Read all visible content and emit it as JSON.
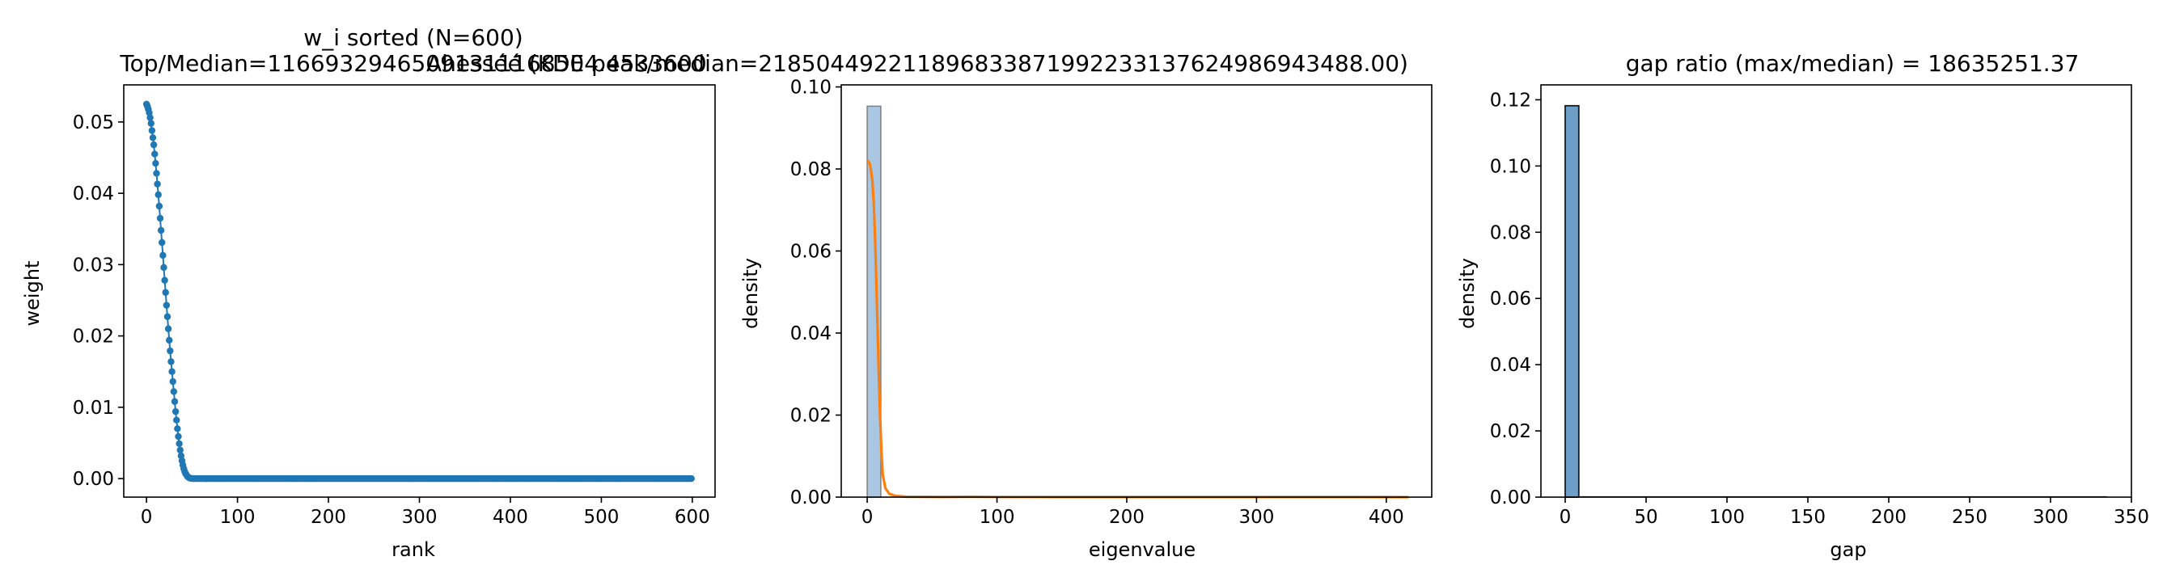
{
  "colors": {
    "blue": "#1f77b4",
    "orange": "#ff7f0e",
    "hist_blue_light": "#a9c6e2",
    "hist_blue": "#6d9ec7"
  },
  "chart_data": [
    {
      "type": "line",
      "title_line1": "w_i sorted (N=600)",
      "title_line2": "Top/Median=11669329465091311168504.4533600",
      "xlabel": "rank",
      "ylabel": "weight",
      "xlim": [
        -25,
        625
      ],
      "ylim": [
        -0.0026,
        0.0552
      ],
      "xticks": [
        0,
        100,
        200,
        300,
        400,
        500,
        600
      ],
      "yticks": [
        0.0,
        0.01,
        0.02,
        0.03,
        0.04,
        0.05
      ],
      "ytick_labels": [
        "0.00",
        "0.01",
        "0.02",
        "0.03",
        "0.04",
        "0.05"
      ],
      "series": [
        {
          "description": "sorted weights, markers at every rank 0..599",
          "points": [
            [
              0,
              0.0525
            ],
            [
              1,
              0.0522
            ],
            [
              2,
              0.0518
            ],
            [
              3,
              0.0513
            ],
            [
              4,
              0.0506
            ],
            [
              5,
              0.0498
            ],
            [
              6,
              0.0488
            ],
            [
              7,
              0.0478
            ],
            [
              8,
              0.0468
            ],
            [
              9,
              0.0455
            ],
            [
              10,
              0.0442
            ],
            [
              11,
              0.0428
            ],
            [
              12,
              0.0413
            ],
            [
              13,
              0.0398
            ],
            [
              14,
              0.0382
            ],
            [
              15,
              0.0365
            ],
            [
              16,
              0.0348
            ],
            [
              17,
              0.0331
            ],
            [
              18,
              0.0313
            ],
            [
              19,
              0.0296
            ],
            [
              20,
              0.0278
            ],
            [
              21,
              0.0261
            ],
            [
              22,
              0.0243
            ],
            [
              23,
              0.0227
            ],
            [
              24,
              0.021
            ],
            [
              25,
              0.0194
            ],
            [
              26,
              0.0179
            ],
            [
              27,
              0.0164
            ],
            [
              28,
              0.015
            ],
            [
              29,
              0.0136
            ],
            [
              30,
              0.0122
            ],
            [
              31,
              0.0108
            ],
            [
              32,
              0.0094
            ],
            [
              33,
              0.0082
            ],
            [
              34,
              0.007
            ],
            [
              35,
              0.0059
            ],
            [
              36,
              0.0049
            ],
            [
              37,
              0.004
            ],
            [
              38,
              0.0032
            ],
            [
              39,
              0.0025
            ],
            [
              40,
              0.0019
            ],
            [
              41,
              0.0014
            ],
            [
              42,
              0.001
            ],
            [
              43,
              0.0007
            ],
            [
              44,
              0.0005
            ],
            [
              45,
              0.0003
            ],
            [
              46,
              0.0002
            ],
            [
              47,
              0.0001
            ],
            [
              48,
              6e-05
            ],
            [
              49,
              3e-05
            ],
            [
              50,
              1e-05
            ]
          ],
          "tail_start": 51,
          "tail_end": 599,
          "tail_value": 0.0
        }
      ]
    },
    {
      "type": "histogram",
      "title": "Ahesséé (KDE peak/median=218504492211896833871992233137624986943488.00)",
      "xlabel": "eigenvalue",
      "ylabel": "density",
      "xlim": [
        -20,
        435
      ],
      "ylim": [
        0,
        0.1005
      ],
      "xticks": [
        0,
        100,
        200,
        300,
        400
      ],
      "yticks": [
        0.0,
        0.02,
        0.04,
        0.06,
        0.08,
        0.1
      ],
      "ytick_labels": [
        "0.00",
        "0.02",
        "0.04",
        "0.06",
        "0.08",
        "0.10"
      ],
      "bins": [
        {
          "x0": 0,
          "x1": 10.5,
          "density": 0.0953
        }
      ],
      "kde": {
        "description": "KDE curve",
        "points": [
          [
            0,
            0.082
          ],
          [
            1,
            0.0818
          ],
          [
            2,
            0.0812
          ],
          [
            3,
            0.0795
          ],
          [
            4,
            0.077
          ],
          [
            5,
            0.072
          ],
          [
            6,
            0.064
          ],
          [
            7,
            0.053
          ],
          [
            8,
            0.041
          ],
          [
            9,
            0.029
          ],
          [
            10,
            0.019
          ],
          [
            11,
            0.011
          ],
          [
            12,
            0.0055
          ],
          [
            14,
            0.0022
          ],
          [
            17,
            0.0008
          ],
          [
            22,
            0.0003
          ],
          [
            30,
            0.0001
          ],
          [
            60,
            5e-05
          ],
          [
            80,
            0.0001
          ],
          [
            100,
            4e-05
          ],
          [
            150,
            3e-05
          ],
          [
            200,
            3e-05
          ],
          [
            300,
            2e-05
          ],
          [
            380,
            2e-05
          ],
          [
            417,
            0.0
          ]
        ]
      }
    },
    {
      "type": "histogram",
      "title": "gap ratio (max/median) = 18635251.37",
      "xlabel": "gap",
      "ylabel": "density",
      "xlim": [
        -15,
        350
      ],
      "ylim": [
        0,
        0.1245
      ],
      "xticks": [
        0,
        50,
        100,
        150,
        200,
        250,
        300,
        350
      ],
      "yticks": [
        0.0,
        0.02,
        0.04,
        0.06,
        0.08,
        0.1,
        0.12
      ],
      "ytick_labels": [
        "0.00",
        "0.02",
        "0.04",
        "0.06",
        "0.08",
        "0.10",
        "0.12"
      ],
      "bins": [
        {
          "x0": 0,
          "x1": 8.4,
          "density": 0.1182
        },
        {
          "x0": 8.4,
          "x1": 335,
          "density": 0.0
        }
      ]
    }
  ]
}
